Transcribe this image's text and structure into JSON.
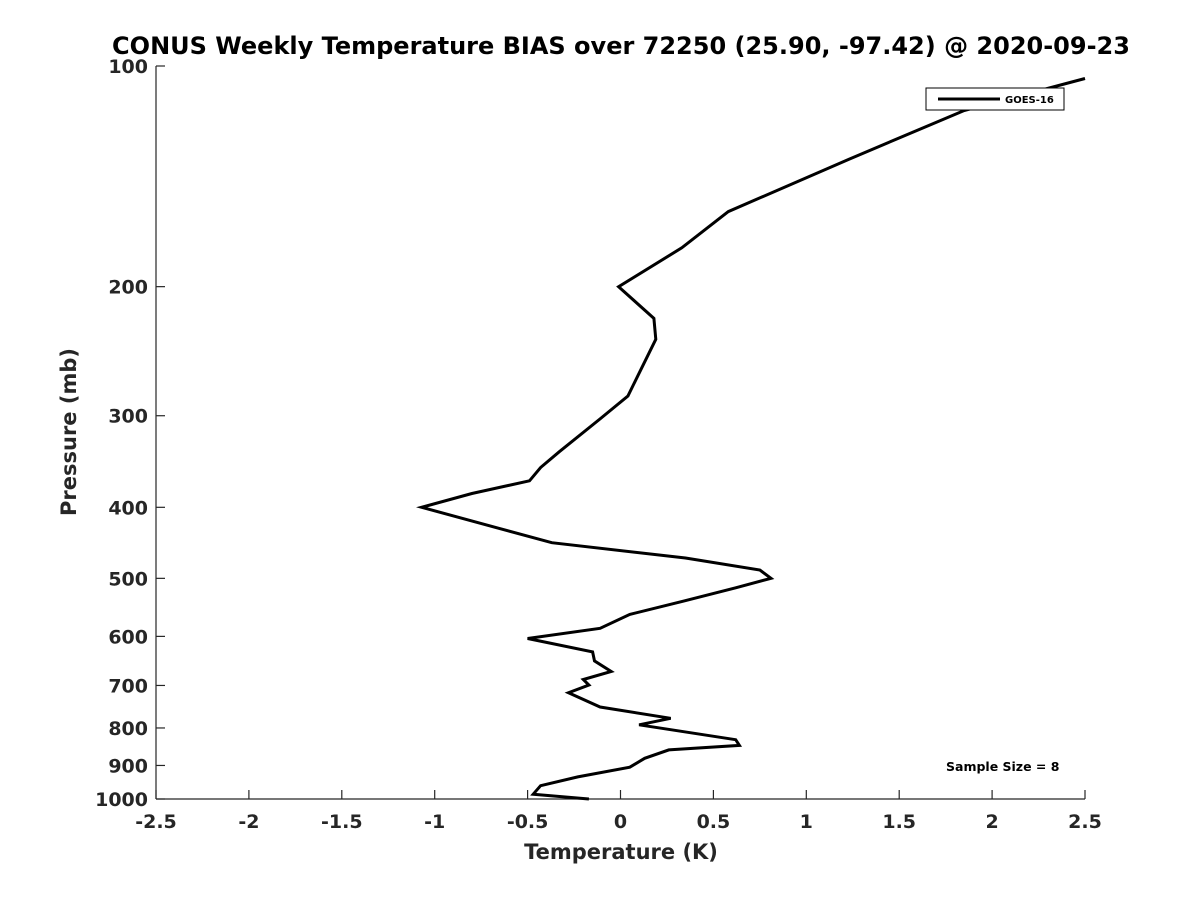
{
  "chart_data": {
    "type": "line",
    "title": "CONUS Weekly Temperature BIAS over 72250 (25.90, -97.42) @ 2020-09-23",
    "xlabel": "Temperature (K)",
    "ylabel": "Pressure (mb)",
    "xlim": [
      -2.5,
      2.5
    ],
    "ylim": [
      100,
      1000
    ],
    "y_scale": "log",
    "y_reversed": true,
    "x_ticks": [
      -2.5,
      -2,
      -1.5,
      -1,
      -0.5,
      0,
      0.5,
      1,
      1.5,
      2,
      2.5
    ],
    "x_tick_labels": [
      "-2.5",
      "-2",
      "-1.5",
      "-1",
      "-0.5",
      "0",
      "0.5",
      "1",
      "1.5",
      "2",
      "2.5"
    ],
    "y_ticks": [
      100,
      200,
      300,
      400,
      500,
      600,
      700,
      800,
      900,
      1000
    ],
    "y_tick_labels": [
      "100",
      "200",
      "300",
      "400",
      "500",
      "600",
      "700",
      "800",
      "900",
      "1000"
    ],
    "grid": false,
    "legend_position": "top-right",
    "annotation": "Sample Size = 8",
    "series": [
      {
        "name": "GOES-16",
        "color": "#000000",
        "x": [
          2.5,
          1.85,
          1.23,
          0.58,
          0.33,
          -0.01,
          0.18,
          0.19,
          0.04,
          -0.11,
          -0.33,
          -0.43,
          -0.49,
          -0.8,
          -1.07,
          -0.66,
          -0.37,
          0.35,
          0.75,
          0.81,
          0.62,
          0.34,
          0.05,
          -0.11,
          -0.5,
          -0.15,
          -0.14,
          -0.05,
          -0.2,
          -0.17,
          -0.28,
          -0.11,
          0.27,
          0.1,
          0.62,
          0.64,
          0.26,
          0.13,
          0.05,
          -0.23,
          -0.43,
          -0.47,
          -0.17
        ],
        "y": [
          104,
          115,
          134,
          158,
          177,
          200,
          221,
          236,
          282,
          303,
          336,
          353,
          368,
          383,
          400,
          427,
          447,
          469,
          487,
          500,
          515,
          537,
          560,
          585,
          604,
          630,
          648,
          670,
          687,
          699,
          716,
          749,
          776,
          792,
          830,
          845,
          857,
          880,
          905,
          933,
          959,
          985,
          1000
        ]
      }
    ]
  }
}
